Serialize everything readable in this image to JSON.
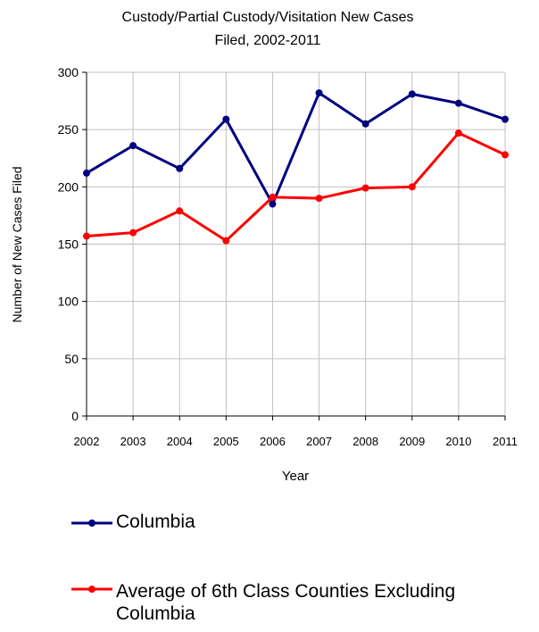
{
  "chart_data": {
    "type": "line",
    "title_lines": [
      "Custody/Partial Custody/Visitation New  Cases",
      "Filed, 2002-2011"
    ],
    "xlabel": "Year",
    "ylabel": "Number of New Cases Filed",
    "categories": [
      "2002",
      "2003",
      "2004",
      "2005",
      "2006",
      "2007",
      "2008",
      "2009",
      "2010",
      "2011"
    ],
    "ylim": [
      0,
      300
    ],
    "yticks": [
      0,
      50,
      100,
      150,
      200,
      250,
      300
    ],
    "grid": true,
    "legend_position": "bottom",
    "series": [
      {
        "name": "Columbia",
        "color": "#000080",
        "values": [
          212,
          236,
          216,
          259,
          185,
          282,
          255,
          281,
          273,
          259
        ]
      },
      {
        "name": "Average of 6th Class Counties Excluding Columbia",
        "color": "#ff0000",
        "values": [
          157,
          160,
          179,
          153,
          191,
          190,
          199,
          200,
          247,
          228
        ]
      }
    ]
  }
}
